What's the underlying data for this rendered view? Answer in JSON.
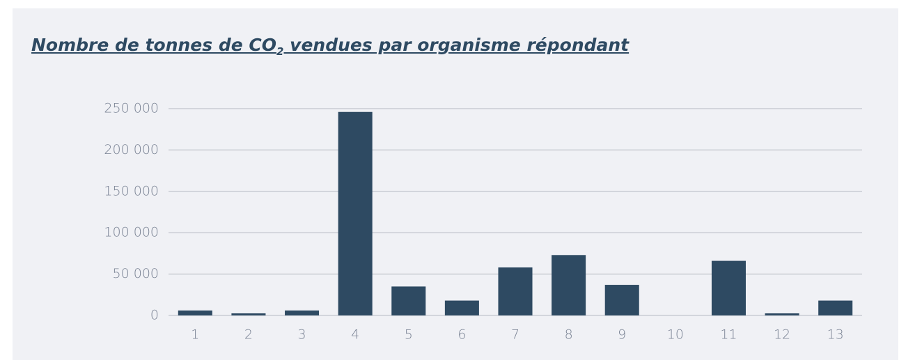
{
  "chart_data": {
    "type": "bar",
    "title": [
      "Nombre de tonnes de CO",
      "2",
      " vendues par organisme répondant"
    ],
    "categories": [
      "1",
      "2",
      "3",
      "4",
      "5",
      "6",
      "7",
      "8",
      "9",
      "10",
      "11",
      "12",
      "13"
    ],
    "values": [
      6000,
      2500,
      6000,
      246000,
      35000,
      18000,
      58000,
      73000,
      37000,
      0,
      66000,
      2500,
      18000
    ],
    "color": "#2e4a62",
    "ylim": [
      0,
      250000
    ],
    "yticks": [
      0,
      {
        "value": 50000,
        "label": "50 000"
      },
      {
        "value": 100000,
        "label": "100 000"
      },
      {
        "value": 150000,
        "label": "150 000"
      },
      {
        "value": 200000,
        "label": "200 000"
      },
      {
        "value": 250000,
        "label": "250 000"
      }
    ],
    "grid": true
  }
}
